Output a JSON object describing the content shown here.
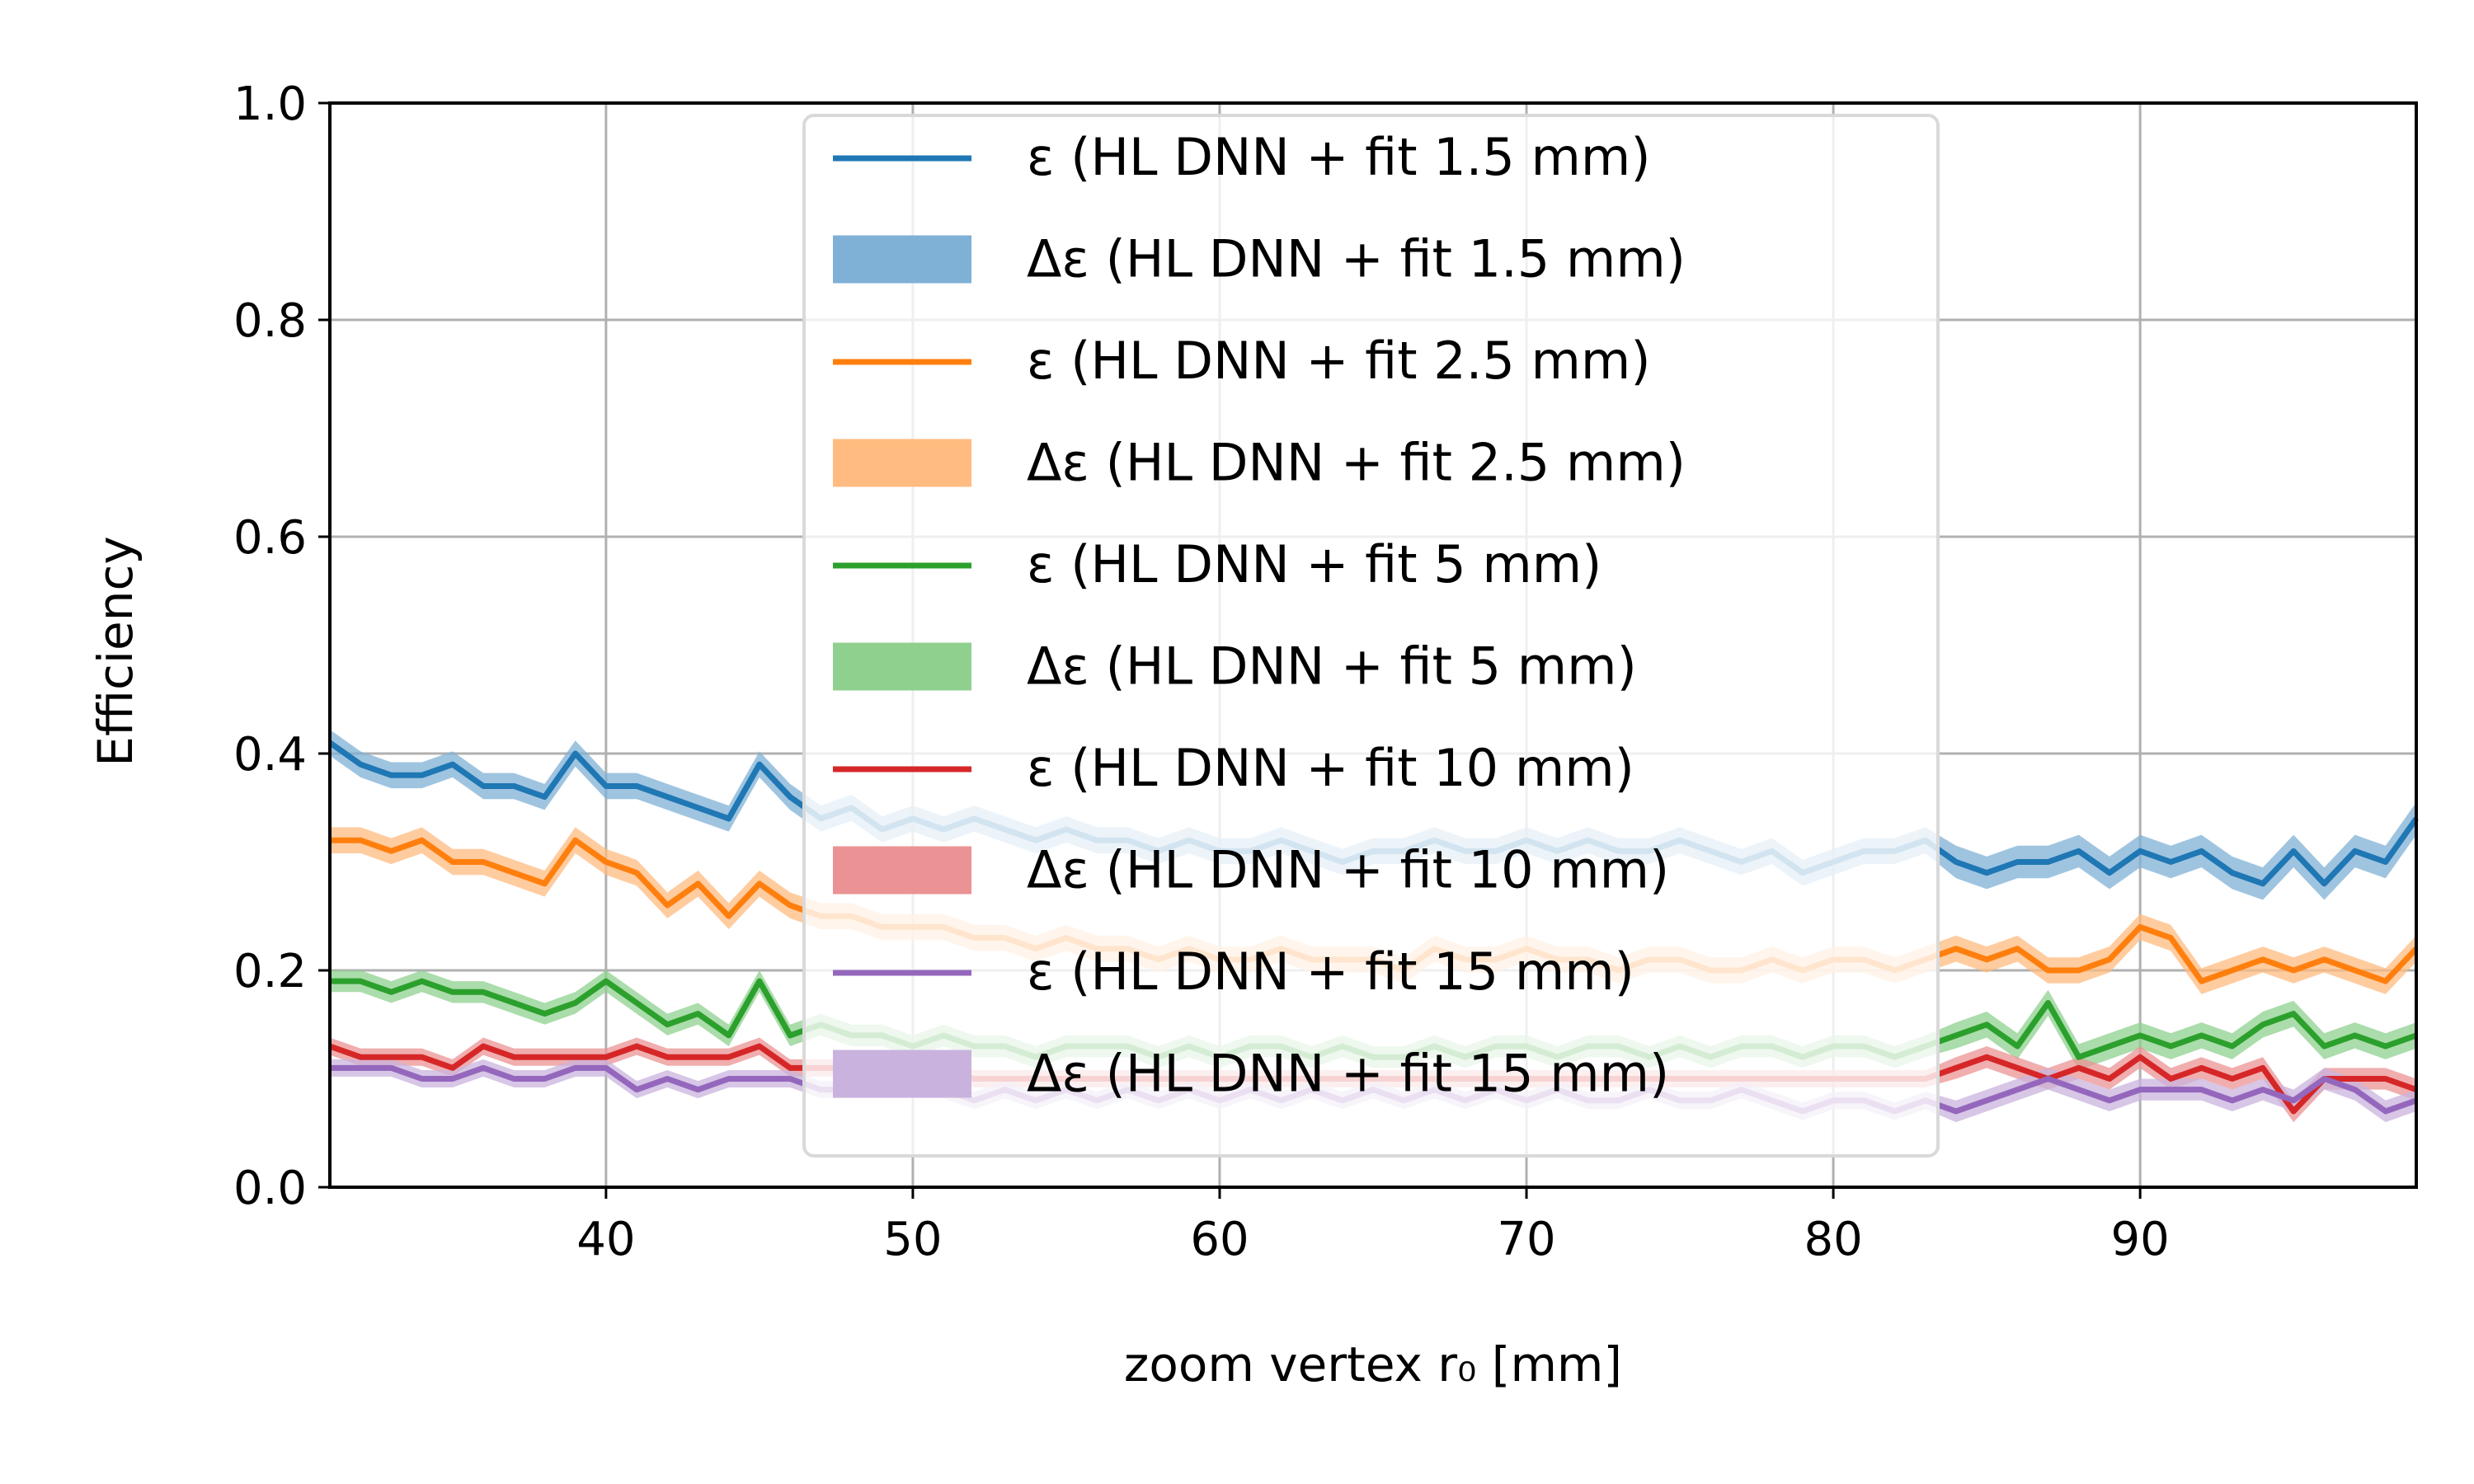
{
  "chart_data": {
    "type": "line",
    "title": "",
    "xlabel": "zoom vertex r₀ [mm]",
    "ylabel": "Efficiency",
    "xlim": [
      31,
      99
    ],
    "ylim": [
      0.0,
      1.0
    ],
    "xticks": [
      "40",
      "50",
      "60",
      "70",
      "80",
      "90"
    ],
    "xtick_values": [
      40,
      50,
      60,
      70,
      80,
      90
    ],
    "yticks": [
      "0.0",
      "0.2",
      "0.4",
      "0.6",
      "0.8",
      "1.0"
    ],
    "ytick_values": [
      0.0,
      0.2,
      0.4,
      0.6,
      0.8,
      1.0
    ],
    "grid": true,
    "legend_position": "top-center",
    "x": [
      31,
      32,
      33,
      34,
      35,
      36,
      37,
      38,
      39,
      40,
      41,
      42,
      43,
      44,
      45,
      46,
      47,
      48,
      49,
      50,
      51,
      52,
      53,
      54,
      55,
      56,
      57,
      58,
      59,
      60,
      61,
      62,
      63,
      64,
      65,
      66,
      67,
      68,
      69,
      70,
      71,
      72,
      73,
      74,
      75,
      76,
      77,
      78,
      79,
      80,
      81,
      82,
      83,
      84,
      85,
      86,
      87,
      88,
      89,
      90,
      91,
      92,
      93,
      94,
      95,
      96,
      97,
      98,
      99
    ],
    "series": [
      {
        "name": "ε (HL DNN + fit 1.5 mm)",
        "band_name": "Δε (HL DNN + fit 1.5 mm)",
        "color": "#1f77b4",
        "band_color": "#7fb0d6",
        "values": [
          0.41,
          0.39,
          0.38,
          0.38,
          0.39,
          0.37,
          0.37,
          0.36,
          0.4,
          0.37,
          0.37,
          0.36,
          0.35,
          0.34,
          0.39,
          0.36,
          0.34,
          0.35,
          0.33,
          0.34,
          0.33,
          0.34,
          0.33,
          0.32,
          0.33,
          0.32,
          0.32,
          0.31,
          0.32,
          0.31,
          0.31,
          0.32,
          0.31,
          0.3,
          0.31,
          0.31,
          0.32,
          0.31,
          0.31,
          0.32,
          0.31,
          0.32,
          0.31,
          0.31,
          0.32,
          0.31,
          0.3,
          0.31,
          0.29,
          0.3,
          0.31,
          0.31,
          0.32,
          0.3,
          0.29,
          0.3,
          0.3,
          0.31,
          0.29,
          0.31,
          0.3,
          0.31,
          0.29,
          0.28,
          0.31,
          0.28,
          0.31,
          0.3,
          0.34
        ],
        "err": [
          0.012,
          0.012,
          0.012,
          0.012,
          0.012,
          0.012,
          0.012,
          0.012,
          0.012,
          0.012,
          0.012,
          0.012,
          0.012,
          0.012,
          0.012,
          0.012,
          0.012,
          0.012,
          0.012,
          0.012,
          0.012,
          0.012,
          0.012,
          0.012,
          0.012,
          0.012,
          0.012,
          0.012,
          0.012,
          0.012,
          0.012,
          0.012,
          0.012,
          0.012,
          0.012,
          0.012,
          0.012,
          0.012,
          0.012,
          0.012,
          0.012,
          0.012,
          0.012,
          0.012,
          0.012,
          0.012,
          0.012,
          0.012,
          0.012,
          0.012,
          0.012,
          0.012,
          0.012,
          0.015,
          0.015,
          0.015,
          0.015,
          0.015,
          0.015,
          0.015,
          0.015,
          0.015,
          0.015,
          0.015,
          0.015,
          0.015,
          0.015,
          0.015,
          0.015
        ]
      },
      {
        "name": "ε (HL DNN + fit 2.5 mm)",
        "band_name": "Δε (HL DNN + fit 2.5 mm)",
        "color": "#ff7f0e",
        "band_color": "#ffbb80",
        "values": [
          0.32,
          0.32,
          0.31,
          0.32,
          0.3,
          0.3,
          0.29,
          0.28,
          0.32,
          0.3,
          0.29,
          0.26,
          0.28,
          0.25,
          0.28,
          0.26,
          0.25,
          0.25,
          0.24,
          0.24,
          0.24,
          0.23,
          0.23,
          0.22,
          0.23,
          0.22,
          0.22,
          0.21,
          0.22,
          0.21,
          0.21,
          0.22,
          0.21,
          0.21,
          0.21,
          0.2,
          0.22,
          0.21,
          0.21,
          0.22,
          0.21,
          0.21,
          0.2,
          0.21,
          0.21,
          0.2,
          0.2,
          0.21,
          0.2,
          0.21,
          0.21,
          0.2,
          0.21,
          0.22,
          0.21,
          0.22,
          0.2,
          0.2,
          0.21,
          0.24,
          0.23,
          0.19,
          0.2,
          0.21,
          0.2,
          0.21,
          0.2,
          0.19,
          0.22
        ],
        "err": [
          0.012,
          0.012,
          0.012,
          0.012,
          0.012,
          0.012,
          0.012,
          0.012,
          0.012,
          0.012,
          0.012,
          0.012,
          0.012,
          0.012,
          0.012,
          0.012,
          0.012,
          0.012,
          0.012,
          0.012,
          0.012,
          0.012,
          0.012,
          0.012,
          0.012,
          0.012,
          0.012,
          0.012,
          0.012,
          0.012,
          0.012,
          0.012,
          0.012,
          0.012,
          0.012,
          0.012,
          0.012,
          0.012,
          0.012,
          0.012,
          0.012,
          0.012,
          0.012,
          0.012,
          0.012,
          0.012,
          0.012,
          0.012,
          0.012,
          0.012,
          0.012,
          0.012,
          0.012,
          0.012,
          0.012,
          0.012,
          0.012,
          0.012,
          0.012,
          0.012,
          0.012,
          0.012,
          0.012,
          0.012,
          0.012,
          0.012,
          0.012,
          0.012,
          0.012
        ]
      },
      {
        "name": "ε (HL DNN + fit 5 mm)",
        "band_name": "Δε (HL DNN + fit 5 mm)",
        "color": "#2ca02c",
        "band_color": "#8fd08f",
        "values": [
          0.19,
          0.19,
          0.18,
          0.19,
          0.18,
          0.18,
          0.17,
          0.16,
          0.17,
          0.19,
          0.17,
          0.15,
          0.16,
          0.14,
          0.19,
          0.14,
          0.15,
          0.14,
          0.14,
          0.13,
          0.14,
          0.13,
          0.13,
          0.12,
          0.13,
          0.13,
          0.13,
          0.12,
          0.13,
          0.12,
          0.13,
          0.13,
          0.12,
          0.13,
          0.12,
          0.12,
          0.13,
          0.12,
          0.13,
          0.13,
          0.12,
          0.13,
          0.13,
          0.12,
          0.13,
          0.12,
          0.13,
          0.13,
          0.12,
          0.13,
          0.13,
          0.12,
          0.13,
          0.14,
          0.15,
          0.13,
          0.17,
          0.12,
          0.13,
          0.14,
          0.13,
          0.14,
          0.13,
          0.15,
          0.16,
          0.13,
          0.14,
          0.13,
          0.14
        ],
        "err": [
          0.01,
          0.01,
          0.01,
          0.01,
          0.01,
          0.01,
          0.01,
          0.01,
          0.01,
          0.01,
          0.01,
          0.01,
          0.01,
          0.01,
          0.01,
          0.01,
          0.01,
          0.01,
          0.01,
          0.01,
          0.01,
          0.01,
          0.01,
          0.01,
          0.01,
          0.01,
          0.01,
          0.01,
          0.01,
          0.01,
          0.01,
          0.01,
          0.01,
          0.01,
          0.01,
          0.01,
          0.01,
          0.01,
          0.01,
          0.01,
          0.01,
          0.01,
          0.01,
          0.01,
          0.01,
          0.01,
          0.01,
          0.01,
          0.01,
          0.01,
          0.01,
          0.01,
          0.01,
          0.012,
          0.012,
          0.012,
          0.012,
          0.012,
          0.012,
          0.012,
          0.012,
          0.012,
          0.012,
          0.012,
          0.012,
          0.012,
          0.012,
          0.012,
          0.012
        ]
      },
      {
        "name": "ε (HL DNN + fit 10 mm)",
        "band_name": "Δε (HL DNN + fit 10 mm)",
        "color": "#d62728",
        "band_color": "#eb9394",
        "values": [
          0.13,
          0.12,
          0.12,
          0.12,
          0.11,
          0.13,
          0.12,
          0.12,
          0.12,
          0.12,
          0.13,
          0.12,
          0.12,
          0.12,
          0.13,
          0.11,
          0.11,
          0.11,
          0.11,
          0.1,
          0.11,
          0.1,
          0.1,
          0.1,
          0.1,
          0.1,
          0.1,
          0.1,
          0.1,
          0.1,
          0.1,
          0.1,
          0.1,
          0.1,
          0.1,
          0.1,
          0.1,
          0.1,
          0.1,
          0.1,
          0.1,
          0.1,
          0.1,
          0.1,
          0.1,
          0.1,
          0.1,
          0.1,
          0.1,
          0.1,
          0.1,
          0.1,
          0.1,
          0.11,
          0.12,
          0.11,
          0.1,
          0.11,
          0.1,
          0.12,
          0.1,
          0.11,
          0.1,
          0.11,
          0.07,
          0.1,
          0.1,
          0.1,
          0.09
        ],
        "err": [
          0.008,
          0.008,
          0.008,
          0.008,
          0.008,
          0.008,
          0.008,
          0.008,
          0.008,
          0.008,
          0.008,
          0.008,
          0.008,
          0.008,
          0.008,
          0.008,
          0.008,
          0.008,
          0.008,
          0.008,
          0.008,
          0.008,
          0.008,
          0.008,
          0.008,
          0.008,
          0.008,
          0.008,
          0.008,
          0.008,
          0.008,
          0.008,
          0.008,
          0.008,
          0.008,
          0.008,
          0.008,
          0.008,
          0.008,
          0.008,
          0.008,
          0.008,
          0.008,
          0.008,
          0.008,
          0.008,
          0.008,
          0.008,
          0.008,
          0.008,
          0.008,
          0.008,
          0.008,
          0.01,
          0.01,
          0.01,
          0.01,
          0.01,
          0.01,
          0.01,
          0.01,
          0.01,
          0.01,
          0.01,
          0.01,
          0.01,
          0.01,
          0.01,
          0.01
        ]
      },
      {
        "name": "ε (HL DNN + fit 15 mm)",
        "band_name": "Δε (HL DNN + fit 15 mm)",
        "color": "#9467bd",
        "band_color": "#c9b3de",
        "values": [
          0.11,
          0.11,
          0.11,
          0.1,
          0.1,
          0.11,
          0.1,
          0.1,
          0.11,
          0.11,
          0.09,
          0.1,
          0.09,
          0.1,
          0.1,
          0.1,
          0.09,
          0.09,
          0.09,
          0.09,
          0.09,
          0.08,
          0.09,
          0.08,
          0.09,
          0.08,
          0.09,
          0.08,
          0.09,
          0.08,
          0.09,
          0.08,
          0.09,
          0.08,
          0.09,
          0.08,
          0.09,
          0.08,
          0.09,
          0.08,
          0.09,
          0.08,
          0.08,
          0.09,
          0.08,
          0.08,
          0.09,
          0.08,
          0.07,
          0.08,
          0.08,
          0.07,
          0.08,
          0.07,
          0.08,
          0.09,
          0.1,
          0.09,
          0.08,
          0.09,
          0.09,
          0.09,
          0.08,
          0.09,
          0.08,
          0.1,
          0.09,
          0.07,
          0.08
        ],
        "err": [
          0.008,
          0.008,
          0.008,
          0.008,
          0.008,
          0.008,
          0.008,
          0.008,
          0.008,
          0.008,
          0.008,
          0.008,
          0.008,
          0.008,
          0.008,
          0.008,
          0.008,
          0.008,
          0.008,
          0.008,
          0.008,
          0.008,
          0.008,
          0.008,
          0.008,
          0.008,
          0.008,
          0.008,
          0.008,
          0.008,
          0.008,
          0.008,
          0.008,
          0.008,
          0.008,
          0.008,
          0.008,
          0.008,
          0.008,
          0.008,
          0.008,
          0.008,
          0.008,
          0.008,
          0.008,
          0.008,
          0.008,
          0.008,
          0.008,
          0.008,
          0.008,
          0.008,
          0.008,
          0.01,
          0.01,
          0.01,
          0.01,
          0.01,
          0.01,
          0.01,
          0.01,
          0.01,
          0.01,
          0.01,
          0.01,
          0.01,
          0.01,
          0.01,
          0.01
        ]
      }
    ]
  }
}
